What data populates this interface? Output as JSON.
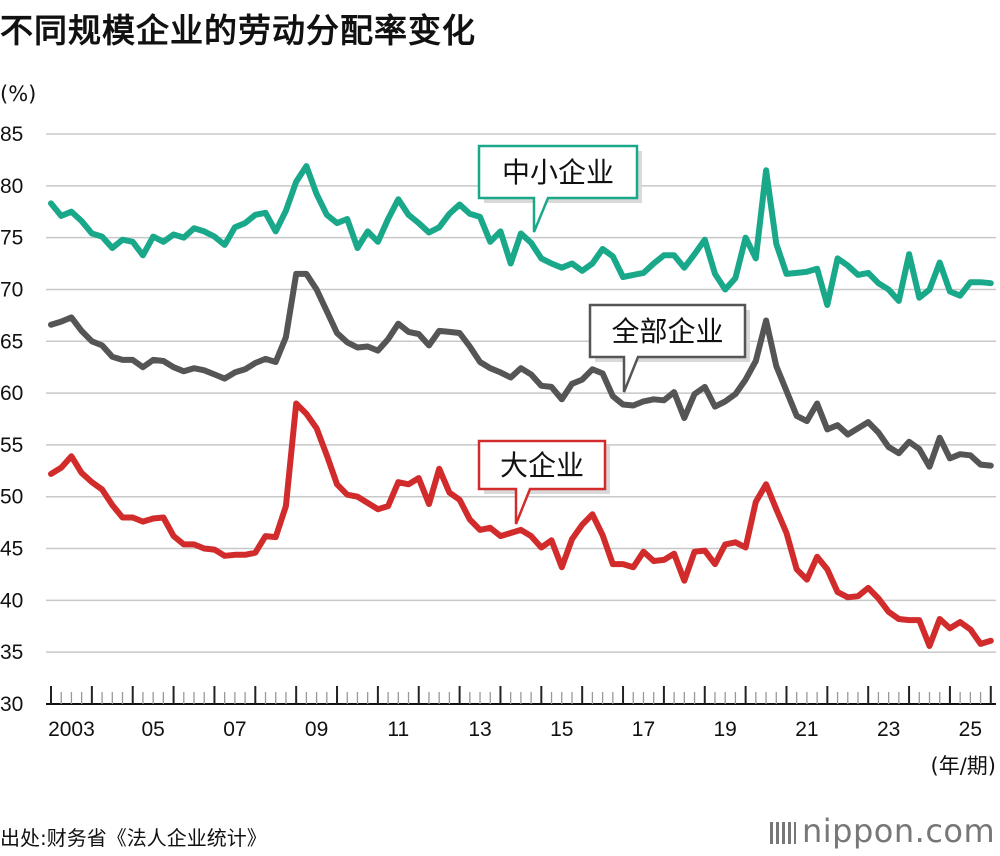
{
  "title": "不同规模企业的劳动分配率变化",
  "source": "出处:财务省《法人企业统计》",
  "logo": "nippon.com",
  "chart_data": {
    "type": "line",
    "title": "不同规模企业的劳动分配率变化",
    "ylabel": "(%)",
    "xlabel": "(年/期)",
    "ylim": [
      30,
      85
    ],
    "yticks": [
      30,
      35,
      40,
      45,
      50,
      55,
      60,
      65,
      70,
      75,
      80,
      85
    ],
    "grid": true,
    "x_start": "2003 Q1",
    "x_frequency": "quarterly",
    "x_tick_labels": [
      {
        "label": "2003",
        "year": 2003
      },
      {
        "label": "05",
        "year": 2005
      },
      {
        "label": "07",
        "year": 2007
      },
      {
        "label": "09",
        "year": 2009
      },
      {
        "label": "11",
        "year": 2011
      },
      {
        "label": "13",
        "year": 2013
      },
      {
        "label": "15",
        "year": 2015
      },
      {
        "label": "17",
        "year": 2017
      },
      {
        "label": "19",
        "year": 2019
      },
      {
        "label": "21",
        "year": 2021
      },
      {
        "label": "23",
        "year": 2023
      },
      {
        "label": "25",
        "year": 2025
      }
    ],
    "series": [
      {
        "name": "中小企业",
        "color": "#1aa88a",
        "values": [
          78.3,
          77.1,
          77.5,
          76.6,
          75.4,
          75.1,
          74.0,
          74.8,
          74.6,
          73.3,
          75.1,
          74.6,
          75.3,
          75.0,
          75.9,
          75.6,
          75.1,
          74.3,
          76.0,
          76.4,
          77.2,
          77.4,
          75.6,
          77.6,
          80.4,
          81.9,
          79.2,
          77.2,
          76.4,
          76.8,
          74.0,
          75.6,
          74.6,
          76.8,
          78.7,
          77.2,
          76.4,
          75.5,
          76.0,
          77.3,
          78.2,
          77.3,
          77.0,
          74.6,
          75.6,
          72.5,
          75.4,
          74.5,
          73.0,
          72.5,
          72.1,
          72.5,
          71.8,
          72.5,
          73.9,
          73.2,
          71.2,
          71.4,
          71.6,
          72.5,
          73.3,
          73.3,
          72.1,
          73.4,
          74.8,
          71.5,
          70.0,
          71.1,
          75.0,
          73.0,
          81.5,
          74.4,
          71.5,
          71.6,
          71.7,
          72.0,
          68.5,
          73.0,
          72.3,
          71.4,
          71.6,
          70.6,
          70.0,
          68.9,
          73.4,
          69.2,
          70.0,
          72.6,
          69.8,
          69.4,
          70.7,
          70.7,
          70.6
        ]
      },
      {
        "name": "全部企业",
        "color": "#555555",
        "values": [
          66.6,
          66.9,
          67.3,
          66.0,
          65.0,
          64.6,
          63.5,
          63.2,
          63.2,
          62.5,
          63.2,
          63.1,
          62.5,
          62.1,
          62.4,
          62.2,
          61.8,
          61.4,
          62.0,
          62.3,
          62.9,
          63.3,
          63.0,
          65.4,
          71.5,
          71.5,
          70.0,
          67.9,
          65.8,
          64.9,
          64.4,
          64.5,
          64.1,
          65.2,
          66.7,
          65.9,
          65.7,
          64.6,
          66.0,
          65.9,
          65.8,
          64.5,
          63.0,
          62.4,
          62.0,
          61.5,
          62.4,
          61.8,
          60.7,
          60.6,
          59.4,
          60.9,
          61.3,
          62.3,
          61.9,
          59.7,
          58.9,
          58.8,
          59.2,
          59.4,
          59.3,
          60.1,
          57.6,
          59.9,
          60.6,
          58.7,
          59.2,
          59.9,
          61.3,
          63.1,
          67.0,
          62.6,
          60.2,
          57.8,
          57.3,
          59.0,
          56.5,
          56.9,
          56.0,
          56.6,
          57.2,
          56.2,
          54.8,
          54.2,
          55.3,
          54.6,
          52.9,
          55.7,
          53.7,
          54.1,
          54.0,
          53.1,
          53.0
        ]
      },
      {
        "name": "大企业",
        "color": "#d22b2b",
        "values": [
          52.2,
          52.8,
          53.9,
          52.3,
          51.4,
          50.7,
          49.2,
          48.0,
          48.0,
          47.6,
          47.9,
          48.0,
          46.2,
          45.4,
          45.4,
          45.0,
          44.9,
          44.3,
          44.4,
          44.4,
          44.6,
          46.2,
          46.1,
          49.1,
          59.0,
          58.0,
          56.6,
          54.0,
          51.2,
          50.2,
          50.0,
          49.4,
          48.8,
          49.1,
          51.4,
          51.2,
          51.8,
          49.3,
          52.7,
          50.4,
          49.7,
          47.8,
          46.8,
          47.0,
          46.2,
          46.5,
          46.8,
          46.2,
          45.1,
          45.8,
          43.2,
          45.9,
          47.3,
          48.3,
          46.3,
          43.5,
          43.5,
          43.2,
          44.7,
          43.8,
          43.9,
          44.5,
          41.9,
          44.7,
          44.8,
          43.5,
          45.4,
          45.6,
          45.1,
          49.5,
          51.2,
          48.8,
          46.5,
          43.0,
          42.0,
          44.2,
          43.0,
          40.8,
          40.3,
          40.4,
          41.2,
          40.2,
          38.9,
          38.2,
          38.1,
          38.1,
          35.6,
          38.2,
          37.3,
          37.9,
          37.2,
          35.8,
          36.1
        ]
      }
    ]
  }
}
